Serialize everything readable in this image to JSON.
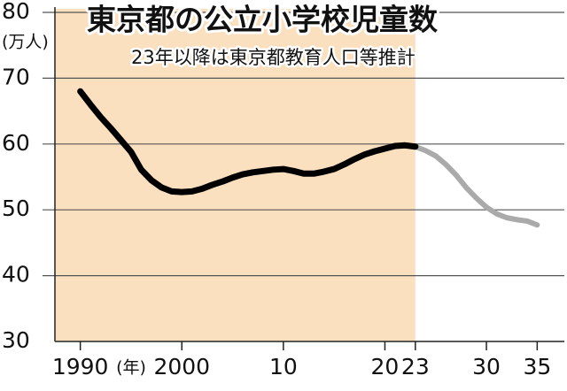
{
  "chart_data": {
    "type": "line",
    "title": "東京都の公立小学校児童数",
    "subtitle": "23年以降は東京都教育人口等推計",
    "y_unit": "(万人)",
    "x_unit": "(年)",
    "xlim": [
      1987.5,
      2037.5
    ],
    "ylim": [
      30,
      80
    ],
    "yticks": [
      30,
      40,
      50,
      60,
      70,
      80
    ],
    "xticks": [
      1990,
      2000,
      {
        "value": 2010,
        "label": "10"
      },
      {
        "value": 2020,
        "label": "20"
      },
      {
        "value": 2023,
        "label": "23"
      },
      {
        "value": 2030,
        "label": "30"
      },
      {
        "value": 2035,
        "label": "35"
      }
    ],
    "grid": true,
    "highlight": {
      "to": 2023,
      "color": "#fbe0c0"
    },
    "series": [
      {
        "color": "#000000",
        "x": [
          1990,
          1991,
          1992,
          1993,
          1994,
          1995,
          1996,
          1997,
          1998,
          1999,
          2000,
          2001,
          2002,
          2003,
          2004,
          2005,
          2006,
          2007,
          2008,
          2009,
          2010,
          2011,
          2012,
          2013,
          2014,
          2015,
          2016,
          2017,
          2018,
          2019,
          2020,
          2021,
          2022,
          2023
        ],
        "values": [
          68,
          66,
          64.1,
          62.4,
          60.6,
          58.8,
          56.1,
          54.5,
          53.4,
          52.8,
          52.7,
          52.8,
          53.2,
          53.8,
          54.3,
          54.9,
          55.4,
          55.7,
          55.9,
          56.1,
          56.2,
          55.9,
          55.5,
          55.5,
          55.8,
          56.2,
          56.9,
          57.7,
          58.4,
          58.9,
          59.3,
          59.7,
          59.8,
          59.6
        ]
      },
      {
        "color": "#aaaaaa",
        "x": [
          2023,
          2024,
          2025,
          2026,
          2027,
          2028,
          2029,
          2030,
          2031,
          2032,
          2033,
          2034,
          2035
        ],
        "values": [
          59.6,
          59,
          58.2,
          56.9,
          55.3,
          53.4,
          51.8,
          50.4,
          49.4,
          48.8,
          48.5,
          48.3,
          47.7
        ]
      }
    ]
  }
}
